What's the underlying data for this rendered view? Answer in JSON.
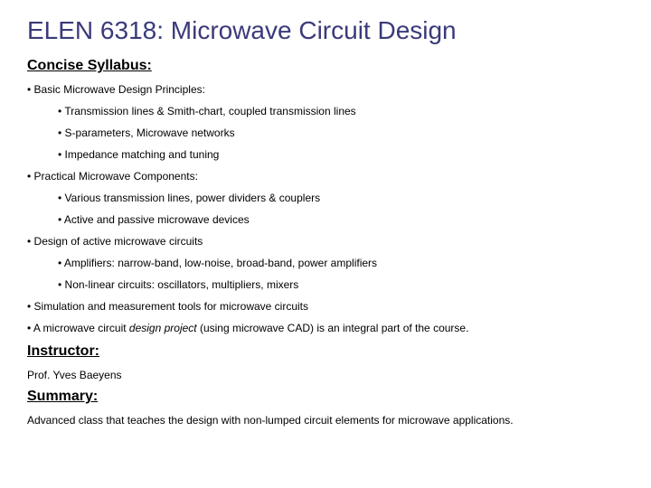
{
  "title": {
    "text": "ELEN 6318: Microwave Circuit Design",
    "color": "#3a3a7a",
    "fontsize": 28
  },
  "syllabus": {
    "heading": "Concise Syllabus:",
    "items": [
      {
        "label": "Basic Microwave Design Principles:",
        "sub": [
          "Transmission lines & Smith-chart, coupled transmission lines",
          "S-parameters, Microwave networks",
          "Impedance matching and tuning"
        ]
      },
      {
        "label": "Practical Microwave Components:",
        "sub": [
          "Various transmission lines, power dividers & couplers",
          "Active and passive microwave devices"
        ]
      },
      {
        "label": "Design of active microwave circuits",
        "sub": [
          "Amplifiers: narrow-band, low-noise, broad-band, power amplifiers",
          "Non-linear circuits: oscillators, multipliers, mixers"
        ]
      },
      {
        "label": "Simulation and measurement tools for microwave circuits",
        "sub": []
      },
      {
        "label_parts": [
          "A microwave circuit ",
          "design project",
          " (using microwave CAD) is an integral part of the course."
        ],
        "sub": []
      }
    ]
  },
  "instructor": {
    "heading": "Instructor:",
    "name": "Prof. Yves Baeyens"
  },
  "summary": {
    "heading": "Summary:",
    "text": "Advanced class that teaches the design with non-lumped circuit elements for microwave applications."
  }
}
